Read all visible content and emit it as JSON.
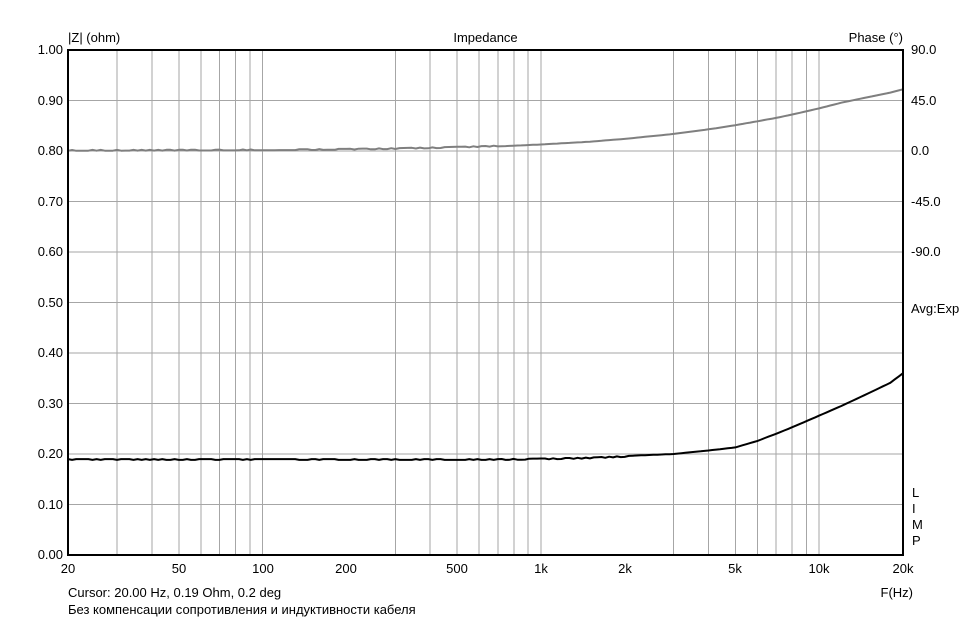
{
  "title": "Impedance",
  "left_axis": {
    "label": "|Z| (ohm)",
    "ticks": [
      "1.00",
      "0.90",
      "0.80",
      "0.70",
      "0.60",
      "0.50",
      "0.40",
      "0.30",
      "0.20",
      "0.10",
      "0.00"
    ],
    "min": 0.0,
    "max": 1.0
  },
  "right_axis": {
    "label": "Phase (°)",
    "ticks": [
      "90.0",
      "45.0",
      "0.0",
      "-45.0",
      "-90.0"
    ],
    "degrees_per_division": 45,
    "zero_aligned_with_left_value": 0.8
  },
  "x_axis": {
    "label": "F(Hz)",
    "scale": "log",
    "min": 20,
    "max": 20000,
    "ticks": [
      {
        "f": 20,
        "label": "20"
      },
      {
        "f": 50,
        "label": "50"
      },
      {
        "f": 100,
        "label": "100"
      },
      {
        "f": 200,
        "label": "200"
      },
      {
        "f": 500,
        "label": "500"
      },
      {
        "f": 1000,
        "label": "1k"
      },
      {
        "f": 2000,
        "label": "2k"
      },
      {
        "f": 5000,
        "label": "5k"
      },
      {
        "f": 10000,
        "label": "10k"
      },
      {
        "f": 20000,
        "label": "20k"
      }
    ]
  },
  "status": {
    "averaging": "Avg:Exp",
    "app_letters": [
      "L",
      "I",
      "M",
      "P"
    ]
  },
  "footer": {
    "cursor": "Cursor: 20.00 Hz, 0.19 Ohm, 0.2 deg",
    "note": "Без компенсации сопротивления и индуктивности кабеля"
  },
  "colors": {
    "background": "#ffffff",
    "frame": "#000000",
    "grid": "#a6a6a6",
    "impedance_curve": "#000000",
    "phase_curve": "#7f7f7f"
  },
  "chart_data": {
    "type": "line",
    "title": "Impedance",
    "xlabel": "F(Hz)",
    "x_scale": "log",
    "xlim": [
      20,
      20000
    ],
    "ylabel_left": "|Z| (ohm)",
    "ylim_left": [
      0.0,
      1.0
    ],
    "ylabel_right": "Phase (°)",
    "right_axis_mapping": "45 deg per 0.1 left-axis division, 0 deg aligned with |Z|=0.80",
    "grid": true,
    "legend_position": "none",
    "cursor_readout": {
      "frequency_hz": 20.0,
      "impedance_ohm": 0.19,
      "phase_deg": 0.2
    },
    "series": [
      {
        "name": "Impedance magnitude |Z| (ohm)",
        "axis": "left",
        "color": "#000000",
        "x": [
          20,
          30,
          50,
          70,
          100,
          150,
          200,
          300,
          500,
          700,
          1000,
          1500,
          2000,
          3000,
          4000,
          5000,
          6000,
          7000,
          8000,
          10000,
          12000,
          15000,
          18000,
          20000
        ],
        "y": [
          0.19,
          0.19,
          0.19,
          0.19,
          0.19,
          0.19,
          0.19,
          0.19,
          0.19,
          0.19,
          0.191,
          0.193,
          0.196,
          0.2,
          0.207,
          0.213,
          0.226,
          0.24,
          0.253,
          0.276,
          0.295,
          0.32,
          0.341,
          0.36
        ]
      },
      {
        "name": "Phase (deg)",
        "axis": "right",
        "color": "#7f7f7f",
        "x": [
          20,
          30,
          50,
          70,
          100,
          150,
          200,
          300,
          500,
          700,
          1000,
          1500,
          2000,
          3000,
          4000,
          5000,
          6000,
          7000,
          8000,
          10000,
          12000,
          15000,
          18000,
          20000
        ],
        "y": [
          0.2,
          0.3,
          0.4,
          0.5,
          0.7,
          0.9,
          1.2,
          1.8,
          3.0,
          4.1,
          5.8,
          8.3,
          10.8,
          15.2,
          19.3,
          23.0,
          26.5,
          29.5,
          32.5,
          38.0,
          43.0,
          48.0,
          52.0,
          55.0
        ]
      }
    ]
  }
}
